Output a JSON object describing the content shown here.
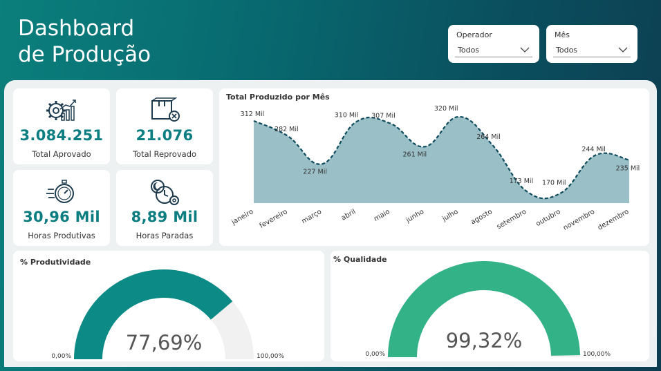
{
  "header": {
    "title_line1": "Dashboard",
    "title_line2": "de Produção"
  },
  "filters": [
    {
      "label": "Operador",
      "value": "Todos"
    },
    {
      "label": "Mês",
      "value": "Todos"
    }
  ],
  "kpis": [
    {
      "value": "3.084.251",
      "label": "Total Aprovado",
      "icon": "gear-chart-icon"
    },
    {
      "value": "21.076",
      "label": "Total Reprovado",
      "icon": "rejected-box-icon"
    },
    {
      "value": "30,96 Mil",
      "label": "Horas Produtivas",
      "icon": "stopwatch-icon"
    },
    {
      "value": "8,89 Mil",
      "label": "Horas Paradas",
      "icon": "clock-gear-icon"
    }
  ],
  "chart_data": [
    {
      "type": "area",
      "title": "Total Produzido por Mês",
      "categories": [
        "janeiro",
        "fevereiro",
        "março",
        "abril",
        "maio",
        "junho",
        "julho",
        "agosto",
        "setembro",
        "outubro",
        "novembro",
        "dezembro"
      ],
      "values": [
        312,
        282,
        227,
        310,
        307,
        261,
        320,
        264,
        173,
        170,
        244,
        235
      ],
      "data_labels": [
        "312 Mil",
        "282 Mil",
        "227 Mil",
        "310 Mil",
        "307 Mil",
        "261 Mil",
        "320 Mil",
        "264 Mil",
        "173 Mil",
        "170 Mil",
        "244 Mil",
        "235 Mil"
      ],
      "unit": "Mil",
      "ylim": [
        150,
        335
      ],
      "fill_color": "#9bbfc7",
      "line_color": "#0d4a5c"
    }
  ],
  "gauges": [
    {
      "title": "% Produtividade",
      "value": 77.69,
      "value_label": "77,69%",
      "min_label": "0,00%",
      "max_label": "100,00%",
      "color": "#0c8a85",
      "track_color": "#f1f1f1"
    },
    {
      "title": "% Qualidade",
      "value": 99.32,
      "value_label": "99,32%",
      "min_label": "0,00%",
      "max_label": "100,00%",
      "color": "#33b287",
      "track_color": "#f1f1f1"
    }
  ]
}
